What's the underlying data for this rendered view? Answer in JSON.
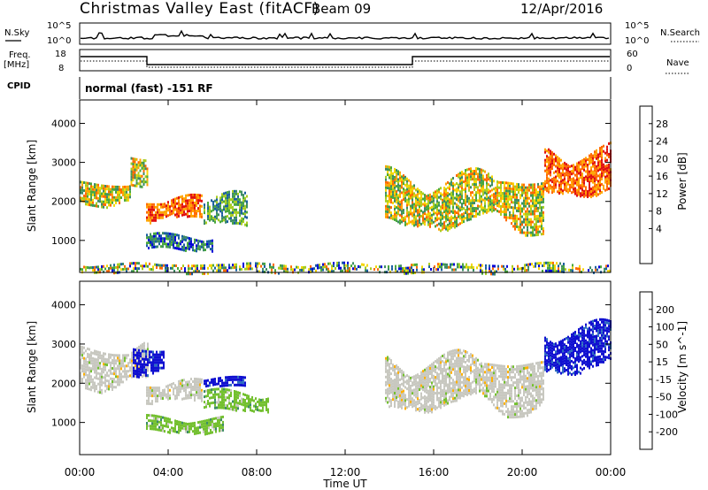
{
  "header": {
    "title": "Christmas Valley East (fitACF)",
    "beam": "Beam 09",
    "date": "12/Apr/2016"
  },
  "strips": {
    "nsky_label": "N.Sky",
    "nsky_ticks": [
      "10^5",
      "10^0"
    ],
    "nsearch_label": "N.Search",
    "nsearch_ticks": [
      "10^5",
      "10^0"
    ],
    "freq_label_1": "Freq.",
    "freq_label_2": "[MHz]",
    "freq_ticks": [
      "18",
      "8"
    ],
    "nave_label": "Nave",
    "nave_ticks": [
      "60",
      "0"
    ],
    "cpid_label": "CPID",
    "cpid_value": "normal (fast) -151 RF"
  },
  "chart_data": [
    {
      "type": "heatmap",
      "parameter": "power",
      "ylabel": "Slant Range [km]",
      "y_ticks": [
        "1000",
        "2000",
        "3000",
        "4000"
      ],
      "ylim": [
        180,
        4600
      ],
      "x_ticks": [
        "00:00",
        "04:00",
        "08:00",
        "12:00",
        "16:00",
        "20:00",
        "00:00"
      ],
      "xlim_hours": [
        0,
        24
      ],
      "colorbar_label": "Power [dB]",
      "colorbar_ticks": [
        "28",
        "24",
        "20",
        "16",
        "12",
        "8",
        "4"
      ],
      "colorbar_colors": [
        "#e01010",
        "#ff6a00",
        "#ffa500",
        "#f5d700",
        "#a8cd20",
        "#49a83c",
        "#3e8c64",
        "#1b5fa0",
        "#0000d8"
      ],
      "echo_regions": [
        {
          "t_start": 0.0,
          "t_end": 2.3,
          "range_low": 1950,
          "range_high": 2550,
          "level": "strong"
        },
        {
          "t_start": 2.3,
          "t_end": 3.1,
          "range_low": 2500,
          "range_high": 3250,
          "level": "strong"
        },
        {
          "t_start": 3.0,
          "t_end": 5.5,
          "range_low": 1500,
          "range_high": 2100,
          "level": "very strong"
        },
        {
          "t_start": 5.6,
          "t_end": 7.6,
          "range_low": 1300,
          "range_high": 2150,
          "level": "moderate"
        },
        {
          "t_start": 3.0,
          "t_end": 6.0,
          "range_low": 750,
          "range_high": 1150,
          "level": "weak"
        },
        {
          "t_start": 13.8,
          "t_end": 21.0,
          "range_low": 1350,
          "range_high": 2700,
          "level": "strong"
        },
        {
          "t_start": 21.0,
          "t_end": 24.0,
          "range_low": 2200,
          "range_high": 3400,
          "level": "very strong"
        },
        {
          "t_start": 0.0,
          "t_end": 24.0,
          "range_low": 200,
          "range_high": 420,
          "level": "noise"
        }
      ]
    },
    {
      "type": "heatmap",
      "parameter": "velocity",
      "ylabel": "Slant Range [km]",
      "y_ticks": [
        "1000",
        "2000",
        "3000",
        "4000"
      ],
      "ylim": [
        180,
        4600
      ],
      "x_ticks": [
        "00:00",
        "04:00",
        "08:00",
        "12:00",
        "16:00",
        "20:00",
        "00:00"
      ],
      "xlim_hours": [
        0,
        24
      ],
      "xlabel": "Time UT",
      "colorbar_label": "Velocity [m s^-1]",
      "colorbar_ticks": [
        "200",
        "100",
        "50",
        "15",
        "-15",
        "-50",
        "-100",
        "-200"
      ],
      "colorbar_colors": [
        "#1010d0",
        "#2d6cc0",
        "#3c8c64",
        "#74c030",
        "#c8c8c0",
        "#ffb000",
        "#ff8400",
        "#ff4a00",
        "#e01010"
      ],
      "echo_regions": [
        {
          "t_start": 0.0,
          "t_end": 3.1,
          "range_low": 1950,
          "range_high": 3000,
          "velocity": "-15 to 15 (gray)"
        },
        {
          "t_start": 2.4,
          "t_end": 3.8,
          "range_low": 2300,
          "range_high": 3000,
          "velocity": "> 200 (blue)"
        },
        {
          "t_start": 3.0,
          "t_end": 5.5,
          "range_low": 1500,
          "range_high": 2050,
          "velocity": "-15 to 15 (gray)"
        },
        {
          "t_start": 5.6,
          "t_end": 7.5,
          "range_low": 1900,
          "range_high": 2150,
          "velocity": "> 200 (blue)"
        },
        {
          "t_start": 5.6,
          "t_end": 8.5,
          "range_low": 1300,
          "range_high": 1800,
          "velocity": "15 to 50 (green)"
        },
        {
          "t_start": 3.0,
          "t_end": 6.5,
          "range_low": 750,
          "range_high": 1150,
          "velocity": "15 to 50 (green)"
        },
        {
          "t_start": 13.8,
          "t_end": 21.0,
          "range_low": 1350,
          "range_high": 2700,
          "velocity": "-15 to 15 (gray)"
        },
        {
          "t_start": 21.0,
          "t_end": 24.0,
          "range_low": 2300,
          "range_high": 3500,
          "velocity": "> 200 (blue)"
        }
      ]
    }
  ]
}
